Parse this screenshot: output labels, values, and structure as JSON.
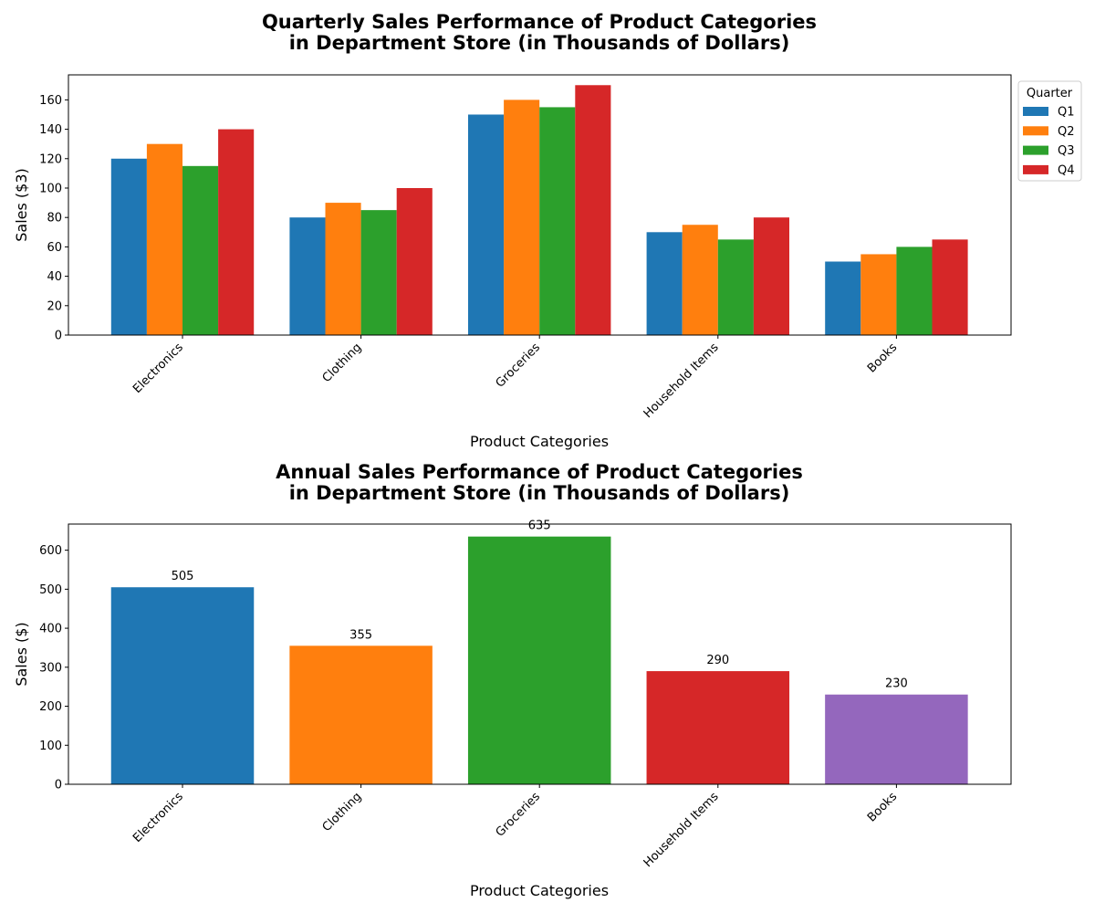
{
  "chart_data": [
    {
      "type": "bar",
      "title_line1": "Quarterly Sales Performance of Product Categories",
      "title_line2": "in Department Store (in Thousands of Dollars)",
      "xlabel": "Product Categories",
      "ylabel": "Sales ($3)",
      "ylim": [
        0,
        177
      ],
      "yticks": [
        0,
        20,
        40,
        60,
        80,
        100,
        120,
        140,
        160
      ],
      "categories": [
        "Electronics",
        "Clothing",
        "Groceries",
        "Household Items",
        "Books"
      ],
      "legend_title": "Quarter",
      "legend_position": "outside-top-right",
      "series": [
        {
          "name": "Q1",
          "color": "#1f77b4",
          "values": [
            120,
            80,
            150,
            70,
            50
          ]
        },
        {
          "name": "Q2",
          "color": "#ff7f0e",
          "values": [
            130,
            90,
            160,
            75,
            55
          ]
        },
        {
          "name": "Q3",
          "color": "#2ca02c",
          "values": [
            115,
            85,
            155,
            65,
            60
          ]
        },
        {
          "name": "Q4",
          "color": "#d62728",
          "values": [
            140,
            100,
            170,
            80,
            65
          ]
        }
      ]
    },
    {
      "type": "bar",
      "title_line1": "Annual Sales Performance of Product Categories",
      "title_line2": "in Department Store (in Thousands of Dollars)",
      "xlabel": "Product Categories",
      "ylabel": "Sales ($)",
      "ylim": [
        0,
        667
      ],
      "yticks": [
        0,
        100,
        200,
        300,
        400,
        500,
        600
      ],
      "categories": [
        "Electronics",
        "Clothing",
        "Groceries",
        "Household Items",
        "Books"
      ],
      "values": [
        505,
        355,
        635,
        290,
        230
      ],
      "colors": [
        "#1f77b4",
        "#ff7f0e",
        "#2ca02c",
        "#d62728",
        "#9467bd"
      ]
    }
  ]
}
